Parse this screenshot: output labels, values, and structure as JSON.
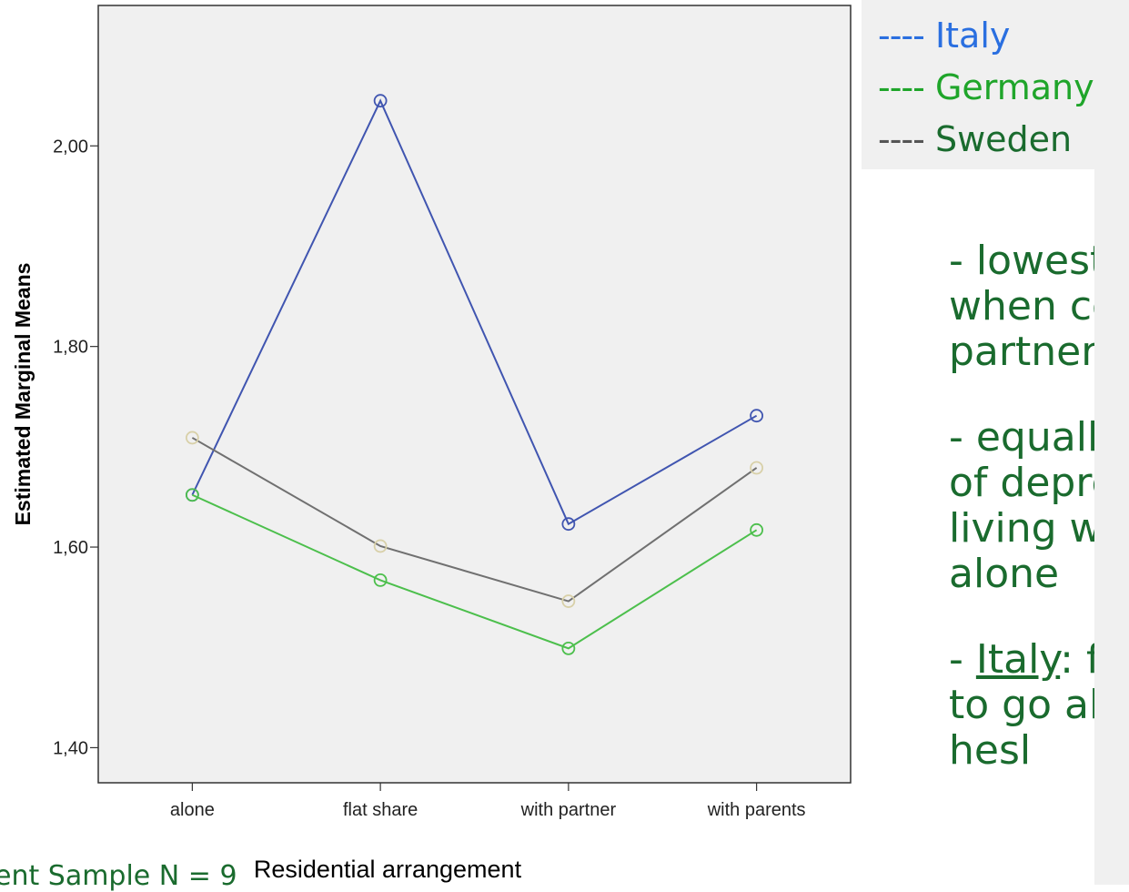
{
  "chart_data": {
    "type": "line",
    "xlabel": "Residential arrangement",
    "ylabel": "Estimated Marginal Means",
    "categories": [
      "alone",
      "flat share",
      "with partner",
      "with parents"
    ],
    "y_ticks": [
      "1,40",
      "1,60",
      "1,80",
      "2,00"
    ],
    "y_tick_values": [
      1.4,
      1.6,
      1.8,
      2.0
    ],
    "ylim": [
      1.365,
      2.14
    ],
    "grid": false,
    "series": [
      {
        "name": "Italy",
        "values": [
          1.652,
          2.045,
          1.623,
          1.731
        ],
        "color": "#4055b0",
        "marker_color": "#4055b0"
      },
      {
        "name": "Germany",
        "values": [
          1.652,
          1.567,
          1.499,
          1.617
        ],
        "color": "#4cbf4c",
        "marker_color": "#4cbf4c"
      },
      {
        "name": "Sweden",
        "values": [
          1.709,
          1.601,
          1.546,
          1.679
        ],
        "color": "#707070",
        "marker_color": "#d8d0a8"
      }
    ]
  },
  "legend": {
    "items": [
      {
        "dash": "----",
        "label": "Italy",
        "color": "#2a6fe0"
      },
      {
        "dash": "----",
        "label": "Germany",
        "color": "#1fa52a"
      },
      {
        "dash": "----",
        "label": "Sweden",
        "color": "#1a6b2e",
        "dash_color": "#555555"
      }
    ]
  },
  "notes": {
    "n1": [
      "- lowest",
      "when co",
      "partner"
    ],
    "n2": [
      "- equall",
      "of depre",
      "living w",
      "alone"
    ],
    "n3_prefix": "- ",
    "n3_underlined": "Italy",
    "n3_rest": ": f",
    "n3_lines": [
      "to go al",
      "hesl"
    ]
  },
  "footnote": "ent Sample N = 9"
}
